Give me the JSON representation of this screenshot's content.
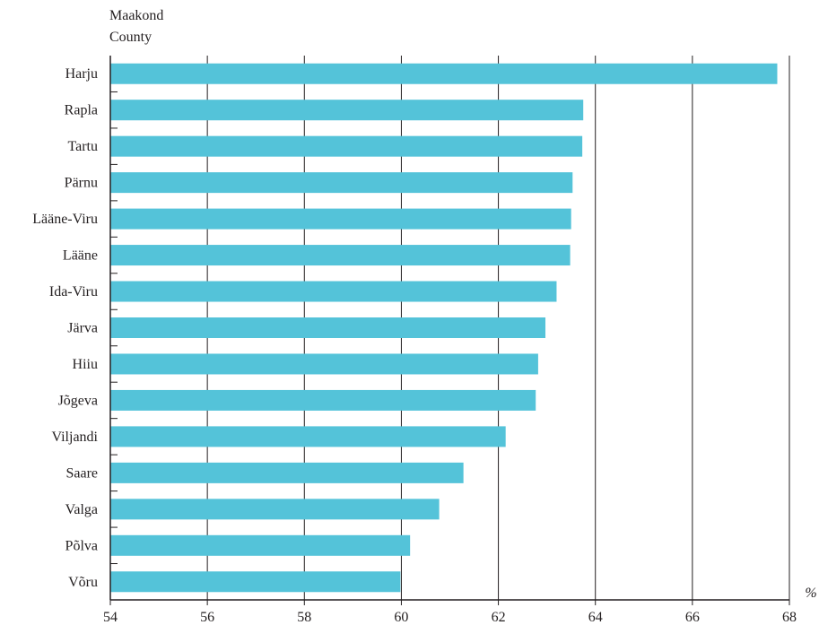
{
  "chart_data": {
    "type": "bar",
    "orientation": "horizontal",
    "y_title_lines": [
      "Maakond",
      "County"
    ],
    "x_unit": "%",
    "categories": [
      "Harju",
      "Rapla",
      "Tartu",
      "Pärnu",
      "Lääne-Viru",
      "Lääne",
      "Ida-Viru",
      "Järva",
      "Hiiu",
      "Jõgeva",
      "Viljandi",
      "Saare",
      "Valga",
      "Põlva",
      "Võru"
    ],
    "values": [
      67.75,
      63.75,
      63.73,
      63.53,
      63.5,
      63.48,
      63.2,
      62.97,
      62.82,
      62.77,
      62.15,
      61.28,
      60.78,
      60.18,
      59.98
    ],
    "xlim": [
      54,
      68
    ],
    "xticks": [
      54,
      56,
      58,
      60,
      62,
      64,
      66,
      68
    ],
    "grid": true,
    "bar_color": "#54c3d9"
  }
}
